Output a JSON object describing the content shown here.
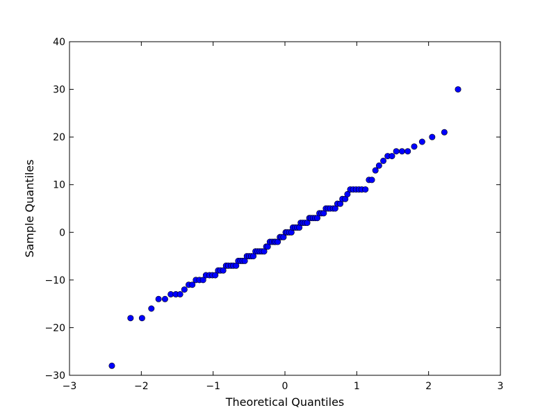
{
  "chart_data": {
    "type": "scatter",
    "title": "",
    "xlabel": "Theoretical Quantiles",
    "ylabel": "Sample Quantiles",
    "xlim": [
      -3,
      3
    ],
    "ylim": [
      -30,
      40
    ],
    "grid": false,
    "xticks": [
      -3,
      -2,
      -1,
      0,
      1,
      2,
      3
    ],
    "yticks": [
      -30,
      -20,
      -10,
      0,
      10,
      20,
      30,
      40
    ],
    "xtick_labels": [
      "−3",
      "−2",
      "−1",
      "0",
      "1",
      "2",
      "3"
    ],
    "ytick_labels": [
      "−30",
      "−20",
      "−10",
      "0",
      "10",
      "20",
      "30",
      "40"
    ],
    "marker_color": "#0000ff",
    "points": [
      [
        -2.41,
        -28
      ],
      [
        -2.15,
        -18
      ],
      [
        -1.99,
        -18
      ],
      [
        -1.86,
        -16
      ],
      [
        -1.76,
        -14
      ],
      [
        -1.67,
        -14
      ],
      [
        -1.59,
        -13
      ],
      [
        -1.52,
        -13
      ],
      [
        -1.46,
        -13
      ],
      [
        -1.4,
        -12
      ],
      [
        -1.34,
        -11
      ],
      [
        -1.29,
        -11
      ],
      [
        -1.24,
        -10
      ],
      [
        -1.19,
        -10
      ],
      [
        -1.14,
        -10
      ],
      [
        -1.1,
        -9
      ],
      [
        -1.05,
        -9
      ],
      [
        -1.01,
        -9
      ],
      [
        -0.97,
        -9
      ],
      [
        -0.93,
        -8
      ],
      [
        -0.9,
        -8
      ],
      [
        -0.86,
        -8
      ],
      [
        -0.82,
        -7
      ],
      [
        -0.79,
        -7
      ],
      [
        -0.75,
        -7
      ],
      [
        -0.72,
        -7
      ],
      [
        -0.68,
        -7
      ],
      [
        -0.65,
        -6
      ],
      [
        -0.62,
        -6
      ],
      [
        -0.59,
        -6
      ],
      [
        -0.56,
        -6
      ],
      [
        -0.53,
        -5
      ],
      [
        -0.5,
        -5
      ],
      [
        -0.47,
        -5
      ],
      [
        -0.44,
        -5
      ],
      [
        -0.41,
        -4
      ],
      [
        -0.38,
        -4
      ],
      [
        -0.35,
        -4
      ],
      [
        -0.32,
        -4
      ],
      [
        -0.29,
        -4
      ],
      [
        -0.26,
        -3
      ],
      [
        -0.24,
        -3
      ],
      [
        -0.21,
        -2
      ],
      [
        -0.18,
        -2
      ],
      [
        -0.15,
        -2
      ],
      [
        -0.13,
        -2
      ],
      [
        -0.1,
        -2
      ],
      [
        -0.07,
        -1
      ],
      [
        -0.05,
        -1
      ],
      [
        -0.02,
        -1
      ],
      [
        0.01,
        0
      ],
      [
        0.03,
        0
      ],
      [
        0.06,
        0
      ],
      [
        0.09,
        0
      ],
      [
        0.11,
        1
      ],
      [
        0.14,
        1
      ],
      [
        0.17,
        1
      ],
      [
        0.2,
        1
      ],
      [
        0.22,
        2
      ],
      [
        0.25,
        2
      ],
      [
        0.28,
        2
      ],
      [
        0.31,
        2
      ],
      [
        0.34,
        3
      ],
      [
        0.36,
        3
      ],
      [
        0.39,
        3
      ],
      [
        0.42,
        3
      ],
      [
        0.45,
        3
      ],
      [
        0.48,
        4
      ],
      [
        0.51,
        4
      ],
      [
        0.54,
        4
      ],
      [
        0.57,
        5
      ],
      [
        0.6,
        5
      ],
      [
        0.63,
        5
      ],
      [
        0.67,
        5
      ],
      [
        0.7,
        5
      ],
      [
        0.73,
        6
      ],
      [
        0.77,
        6
      ],
      [
        0.8,
        7
      ],
      [
        0.84,
        7
      ],
      [
        0.87,
        8
      ],
      [
        0.91,
        9
      ],
      [
        0.95,
        9
      ],
      [
        0.99,
        9
      ],
      [
        1.03,
        9
      ],
      [
        1.07,
        9
      ],
      [
        1.12,
        9
      ],
      [
        1.17,
        11
      ],
      [
        1.21,
        11
      ],
      [
        1.26,
        13
      ],
      [
        1.31,
        14
      ],
      [
        1.37,
        15
      ],
      [
        1.43,
        16
      ],
      [
        1.49,
        16
      ],
      [
        1.55,
        17
      ],
      [
        1.63,
        17
      ],
      [
        1.71,
        17
      ],
      [
        1.8,
        18
      ],
      [
        1.91,
        19
      ],
      [
        2.05,
        20
      ],
      [
        2.22,
        21
      ],
      [
        2.41,
        30
      ]
    ]
  }
}
